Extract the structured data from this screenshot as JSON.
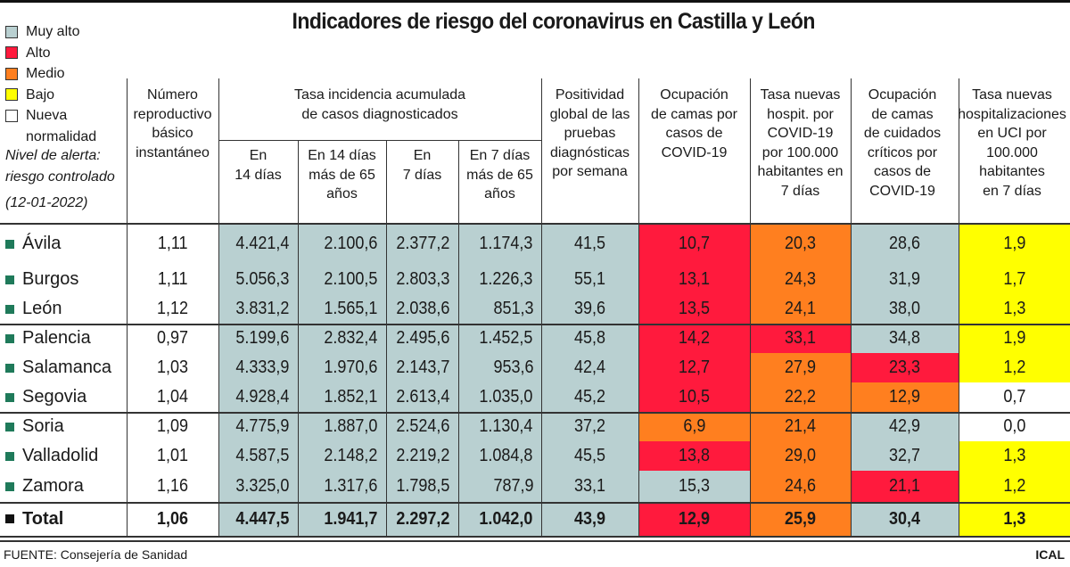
{
  "title": "Indicadores de riesgo del coronavirus en Castilla y León",
  "colors": {
    "muy_alto": "#b9d0d1",
    "alto": "#ff1a3d",
    "medio": "#ff7f1f",
    "bajo": "#ffff00",
    "nueva_normalidad": "#ffffff",
    "province_bullet": "#1f7a5a"
  },
  "legend": [
    {
      "key": "muy_alto",
      "label": "Muy alto"
    },
    {
      "key": "alto",
      "label": "Alto"
    },
    {
      "key": "medio",
      "label": "Medio"
    },
    {
      "key": "bajo",
      "label": "Bajo"
    },
    {
      "key": "nueva_normalidad",
      "label": "Nueva",
      "label2": "normalidad"
    }
  ],
  "alert": {
    "line1": "Nivel de alerta:",
    "line2": "riesgo controlado",
    "date": "(12-01-2022)"
  },
  "headers": {
    "reproductivo": [
      "Número",
      "reproductivo",
      "básico",
      "instantáneo"
    ],
    "tasa_group": [
      "Tasa incidencia acumulada",
      "de casos diagnosticados"
    ],
    "tasa_14": [
      "En",
      "14 días"
    ],
    "tasa_14_65": [
      "En 14 días",
      "más de 65",
      "años"
    ],
    "tasa_7": [
      "En",
      "7 días"
    ],
    "tasa_7_65": [
      "En 7 días",
      "más de 65",
      "años"
    ],
    "positividad": [
      "Positividad",
      "global de las",
      "pruebas",
      "diagnósticas",
      "por semana"
    ],
    "ocup_camas": [
      "Ocupación",
      "de camas por",
      "casos de",
      "COVID-19"
    ],
    "hosp": [
      "Tasa nuevas",
      "hospit. por",
      "COVID-19",
      "por 100.000",
      "habitantes en",
      "7 días"
    ],
    "ocup_uci": [
      "Ocupación",
      "de camas",
      "de cuidados",
      "críticos por",
      "casos de",
      "COVID-19"
    ],
    "uci": [
      "Tasa nuevas",
      "hospitalizaciones",
      "en UCI por",
      "100.000",
      "habitantes",
      "en 7 días"
    ]
  },
  "rows": [
    {
      "province": "Ávila",
      "r": "1,11",
      "t14": "4.421,4",
      "t14_65": "2.100,6",
      "t7": "2.377,2",
      "t7_65": "1.174,3",
      "pos": "41,5",
      "camas": "10,7",
      "hosp": "20,3",
      "uci_ocup": "28,6",
      "uci": "1,9",
      "levels": {
        "t": "muy_alto",
        "pos": "muy_alto",
        "camas": "alto",
        "hosp": "medio",
        "uci_ocup": "muy_alto",
        "uci": "bajo"
      }
    },
    {
      "province": "Burgos",
      "r": "1,11",
      "t14": "5.056,3",
      "t14_65": "2.100,5",
      "t7": "2.803,3",
      "t7_65": "1.226,3",
      "pos": "55,1",
      "camas": "13,1",
      "hosp": "24,3",
      "uci_ocup": "31,9",
      "uci": "1,7",
      "levels": {
        "t": "muy_alto",
        "pos": "muy_alto",
        "camas": "alto",
        "hosp": "medio",
        "uci_ocup": "muy_alto",
        "uci": "bajo"
      }
    },
    {
      "province": "León",
      "r": "1,12",
      "t14": "3.831,2",
      "t14_65": "1.565,1",
      "t7": "2.038,6",
      "t7_65": "851,3",
      "pos": "39,6",
      "camas": "13,5",
      "hosp": "24,1",
      "uci_ocup": "38,0",
      "uci": "1,3",
      "levels": {
        "t": "muy_alto",
        "pos": "muy_alto",
        "camas": "alto",
        "hosp": "medio",
        "uci_ocup": "muy_alto",
        "uci": "bajo"
      }
    },
    {
      "province": "Palencia",
      "r": "0,97",
      "t14": "5.199,6",
      "t14_65": "2.832,4",
      "t7": "2.495,6",
      "t7_65": "1.452,5",
      "pos": "45,8",
      "camas": "14,2",
      "hosp": "33,1",
      "uci_ocup": "34,8",
      "uci": "1,9",
      "levels": {
        "t": "muy_alto",
        "pos": "muy_alto",
        "camas": "alto",
        "hosp": "alto",
        "uci_ocup": "muy_alto",
        "uci": "bajo"
      }
    },
    {
      "province": "Salamanca",
      "r": "1,03",
      "t14": "4.333,9",
      "t14_65": "1.970,6",
      "t7": "2.143,7",
      "t7_65": "953,6",
      "pos": "42,4",
      "camas": "12,7",
      "hosp": "27,9",
      "uci_ocup": "23,3",
      "uci": "1,2",
      "levels": {
        "t": "muy_alto",
        "pos": "muy_alto",
        "camas": "alto",
        "hosp": "medio",
        "uci_ocup": "alto",
        "uci": "bajo"
      }
    },
    {
      "province": "Segovia",
      "r": "1,04",
      "t14": "4.928,4",
      "t14_65": "1.852,1",
      "t7": "2.613,4",
      "t7_65": "1.035,0",
      "pos": "45,2",
      "camas": "10,5",
      "hosp": "22,2",
      "uci_ocup": "12,9",
      "uci": "0,7",
      "levels": {
        "t": "muy_alto",
        "pos": "muy_alto",
        "camas": "alto",
        "hosp": "medio",
        "uci_ocup": "medio",
        "uci": "nueva_normalidad"
      }
    },
    {
      "province": "Soria",
      "r": "1,09",
      "t14": "4.775,9",
      "t14_65": "1.887,0",
      "t7": "2.524,6",
      "t7_65": "1.130,4",
      "pos": "37,2",
      "camas": "6,9",
      "hosp": "21,4",
      "uci_ocup": "42,9",
      "uci": "0,0",
      "levels": {
        "t": "muy_alto",
        "pos": "muy_alto",
        "camas": "medio",
        "hosp": "medio",
        "uci_ocup": "muy_alto",
        "uci": "nueva_normalidad"
      }
    },
    {
      "province": "Valladolid",
      "r": "1,01",
      "t14": "4.587,5",
      "t14_65": "2.148,2",
      "t7": "2.219,2",
      "t7_65": "1.084,8",
      "pos": "45,5",
      "camas": "13,8",
      "hosp": "29,0",
      "uci_ocup": "32,7",
      "uci": "1,3",
      "levels": {
        "t": "muy_alto",
        "pos": "muy_alto",
        "camas": "alto",
        "hosp": "medio",
        "uci_ocup": "muy_alto",
        "uci": "bajo"
      }
    },
    {
      "province": "Zamora",
      "r": "1,16",
      "t14": "3.325,0",
      "t14_65": "1.317,6",
      "t7": "1.798,5",
      "t7_65": "787,9",
      "pos": "33,1",
      "camas": "15,3",
      "hosp": "24,6",
      "uci_ocup": "21,1",
      "uci": "1,2",
      "levels": {
        "t": "muy_alto",
        "pos": "muy_alto",
        "camas": "muy_alto",
        "hosp": "medio",
        "uci_ocup": "alto",
        "uci": "bajo"
      }
    }
  ],
  "total": {
    "province": "Total",
    "r": "1,06",
    "t14": "4.447,5",
    "t14_65": "1.941,7",
    "t7": "2.297,2",
    "t7_65": "1.042,0",
    "pos": "43,9",
    "camas": "12,9",
    "hosp": "25,9",
    "uci_ocup": "30,4",
    "uci": "1,3",
    "levels": {
      "t": "muy_alto",
      "pos": "muy_alto",
      "camas": "alto",
      "hosp": "medio",
      "uci_ocup": "muy_alto",
      "uci": "bajo"
    }
  },
  "footer": {
    "source": "FUENTE: Consejería de Sanidad",
    "credit": "ICAL"
  }
}
